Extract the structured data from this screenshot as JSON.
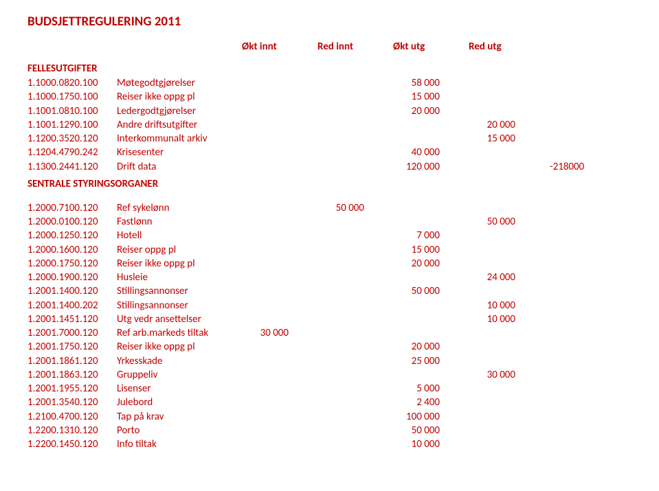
{
  "title": "BUDSJETTREGULERING 2011",
  "column_headers": [
    "Økt innt",
    "Red innt",
    "Økt utg",
    "Red utg"
  ],
  "trailing_value": "-218000",
  "sections": [
    {
      "heading": "FELLESUTGIFTER",
      "rows": [
        {
          "code": "1.1000.0820.100",
          "desc": "Møtegodtgjørelser",
          "c1": "",
          "c2": "",
          "c3": "58 000",
          "c4": ""
        },
        {
          "code": "1.1000.1750.100",
          "desc": "Reiser ikke oppg pl",
          "c1": "",
          "c2": "",
          "c3": "15 000",
          "c4": ""
        },
        {
          "code": "1.1001.0810.100",
          "desc": "Ledergodtgjørelser",
          "c1": "",
          "c2": "",
          "c3": "20 000",
          "c4": ""
        },
        {
          "code": "1.1001.1290.100",
          "desc": "Andre driftsutgifter",
          "c1": "",
          "c2": "",
          "c3": "",
          "c4": "20 000"
        },
        {
          "code": "1.1200.3520.120",
          "desc": "Interkommunalt arkiv",
          "c1": "",
          "c2": "",
          "c3": "",
          "c4": "15 000"
        },
        {
          "code": "1.1204.4790.242",
          "desc": "Krisesenter",
          "c1": "",
          "c2": "",
          "c3": "40 000",
          "c4": ""
        },
        {
          "code": "1.1300.2441.120",
          "desc": "Drift data",
          "c1": "",
          "c2": "",
          "c3": "120 000",
          "c4": ""
        }
      ]
    },
    {
      "heading": "SENTRALE STYRINGSORGANER",
      "rows": [
        {
          "code": "1.2000.7100.120",
          "desc": "Ref sykelønn",
          "c1": "",
          "c2": "50 000",
          "c3": "",
          "c4": ""
        },
        {
          "code": "1.2000.0100.120",
          "desc": "Fastlønn",
          "c1": "",
          "c2": "",
          "c3": "",
          "c4": "50 000"
        },
        {
          "code": "1.2000.1250.120",
          "desc": "Hotell",
          "c1": "",
          "c2": "",
          "c3": "7 000",
          "c4": ""
        },
        {
          "code": "1.2000.1600.120",
          "desc": "Reiser oppg pl",
          "c1": "",
          "c2": "",
          "c3": "15 000",
          "c4": ""
        },
        {
          "code": "1.2000.1750.120",
          "desc": "Reiser ikke oppg pl",
          "c1": "",
          "c2": "",
          "c3": "20 000",
          "c4": ""
        },
        {
          "code": "1.2000.1900.120",
          "desc": "Husleie",
          "c1": "",
          "c2": "",
          "c3": "",
          "c4": "24 000"
        },
        {
          "code": "1.2001.1400.120",
          "desc": "Stillingsannonser",
          "c1": "",
          "c2": "",
          "c3": "50 000",
          "c4": ""
        },
        {
          "code": "1.2001.1400.202",
          "desc": "Stillingsannonser",
          "c1": "",
          "c2": "",
          "c3": "",
          "c4": "10 000"
        },
        {
          "code": "1.2001.1451.120",
          "desc": "Utg vedr ansettelser",
          "c1": "",
          "c2": "",
          "c3": "",
          "c4": "10 000"
        },
        {
          "code": "1.2001.7000.120",
          "desc": "Ref arb.markeds tiltak",
          "c1": "30 000",
          "c2": "",
          "c3": "",
          "c4": ""
        },
        {
          "code": "1.2001.1750.120",
          "desc": "Reiser ikke oppg pl",
          "c1": "",
          "c2": "",
          "c3": "20 000",
          "c4": ""
        },
        {
          "code": "1.2001.1861.120",
          "desc": "Yrkesskade",
          "c1": "",
          "c2": "",
          "c3": "25 000",
          "c4": ""
        },
        {
          "code": "1.2001.1863.120",
          "desc": "Gruppeliv",
          "c1": "",
          "c2": "",
          "c3": "",
          "c4": "30 000"
        },
        {
          "code": "1.2001.1955.120",
          "desc": "Lisenser",
          "c1": "",
          "c2": "",
          "c3": "5 000",
          "c4": ""
        },
        {
          "code": "1.2001.3540.120",
          "desc": "Julebord",
          "c1": "",
          "c2": "",
          "c3": "2 400",
          "c4": ""
        },
        {
          "code": "1.2100.4700.120",
          "desc": "Tap på krav",
          "c1": "",
          "c2": "",
          "c3": "100 000",
          "c4": ""
        },
        {
          "code": "1.2200.1310.120",
          "desc": "Porto",
          "c1": "",
          "c2": "",
          "c3": "50 000",
          "c4": ""
        },
        {
          "code": "1.2200.1450.120",
          "desc": "Info tiltak",
          "c1": "",
          "c2": "",
          "c3": "10 000",
          "c4": ""
        }
      ]
    }
  ]
}
